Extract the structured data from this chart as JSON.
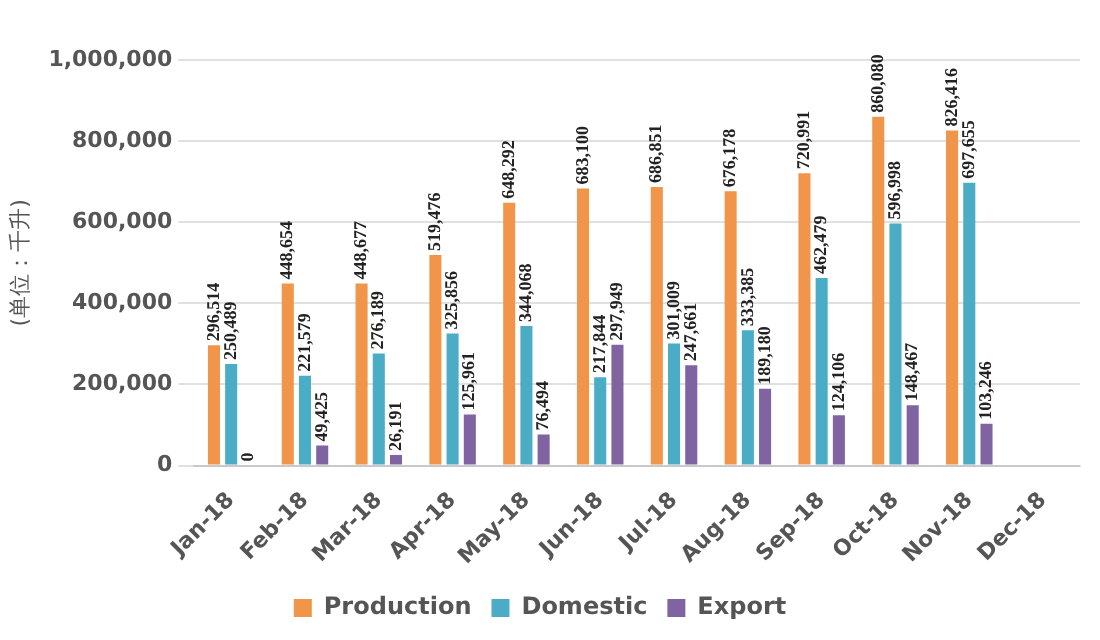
{
  "chart_data": {
    "type": "bar",
    "ylabel": "(单位：千升)",
    "categories": [
      "Jan-18",
      "Feb-18",
      "Mar-18",
      "Apr-18",
      "May-18",
      "Jun-18",
      "Jul-18",
      "Aug-18",
      "Sep-18",
      "Oct-18",
      "Nov-18",
      "Dec-18"
    ],
    "series": [
      {
        "name": "Production",
        "color": "#f0954a",
        "values": [
          296514,
          448654,
          448677,
          519476,
          648292,
          683100,
          686851,
          676178,
          720991,
          860080,
          826416,
          null
        ],
        "value_labels": [
          "296,514",
          "448,654",
          "448,677",
          "519,476",
          "648,292",
          "683,100",
          "686,851",
          "676,178",
          "720,991",
          "860,080",
          "826,416",
          null
        ]
      },
      {
        "name": "Domestic",
        "color": "#4bacc6",
        "values": [
          250489,
          221579,
          276189,
          325856,
          344068,
          217844,
          301009,
          333385,
          462479,
          596998,
          697655,
          null
        ],
        "value_labels": [
          "250,489",
          "221,579",
          "276,189",
          "325,856",
          "344,068",
          "217,844",
          "301,009",
          "333,385",
          "462,479",
          "596,998",
          "697,655",
          null
        ]
      },
      {
        "name": "Export",
        "color": "#8064a2",
        "values": [
          0,
          49425,
          26191,
          125961,
          76494,
          297949,
          247661,
          189180,
          124106,
          148467,
          103246,
          null
        ],
        "value_labels": [
          "0",
          "49,425",
          "26,191",
          "125,961",
          "76,494",
          "297,949",
          "247,661",
          "189,180",
          "124,106",
          "148,467",
          "103,246",
          null
        ]
      }
    ],
    "ylim": [
      0,
      1000000
    ],
    "yticks": [
      0,
      {
        "value": 200000,
        "label": "200,000"
      },
      {
        "value": 400000,
        "label": "400,000"
      },
      {
        "value": 600000,
        "label": "600,000"
      },
      {
        "value": 800000,
        "label": "800,000"
      },
      {
        "value": 1000000,
        "label": "1,000,000"
      }
    ],
    "grid": "y",
    "legend": "bottom"
  }
}
